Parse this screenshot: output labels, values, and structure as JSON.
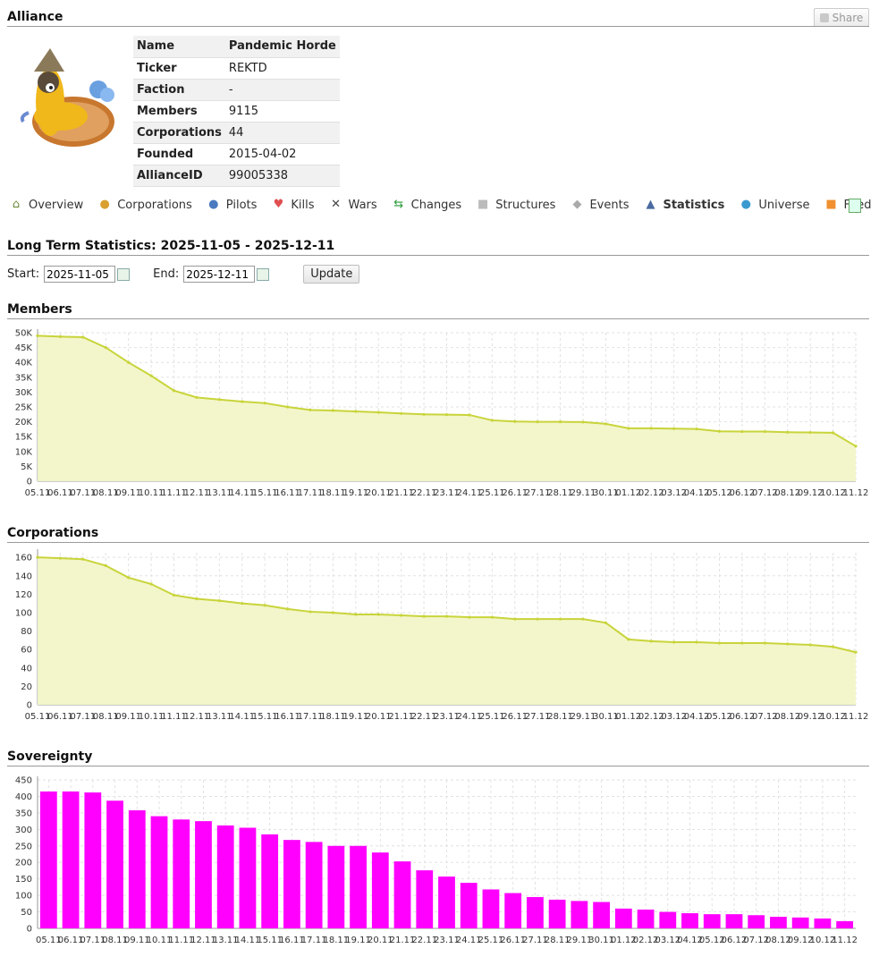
{
  "header": {
    "title": "Alliance",
    "share_label": "Share"
  },
  "info": {
    "rows": [
      {
        "key": "Name",
        "value": "Pandemic Horde"
      },
      {
        "key": "Ticker",
        "value": "REKTD"
      },
      {
        "key": "Faction",
        "value": "-"
      },
      {
        "key": "Members",
        "value": "9115"
      },
      {
        "key": "Corporations",
        "value": "44"
      },
      {
        "key": "Founded",
        "value": "2015-04-02"
      },
      {
        "key": "AllianceID",
        "value": "99005338"
      }
    ]
  },
  "nav": {
    "items": [
      {
        "label": "Overview",
        "icon": "home-icon"
      },
      {
        "label": "Corporations",
        "icon": "corporations-icon"
      },
      {
        "label": "Pilots",
        "icon": "pilot-icon"
      },
      {
        "label": "Kills",
        "icon": "heart-icon"
      },
      {
        "label": "Wars",
        "icon": "crossed-swords-icon"
      },
      {
        "label": "Changes",
        "icon": "shuffle-icon"
      },
      {
        "label": "Structures",
        "icon": "cube-icon"
      },
      {
        "label": "Events",
        "icon": "tag-icon"
      },
      {
        "label": "Statistics",
        "icon": "chart-icon"
      },
      {
        "label": "Universe",
        "icon": "globe-icon"
      },
      {
        "label": "Feed",
        "icon": "rss-icon"
      }
    ],
    "active": "Statistics",
    "end_icon": "bookmark-icon"
  },
  "stats": {
    "title": "Long Term Statistics: 2025-11-05 - 2025-12-11",
    "start_label": "Start:",
    "start_value": "2025-11-05",
    "end_label": "End:",
    "end_value": "2025-12-11",
    "update_label": "Update"
  },
  "colors": {
    "line": "#c8d43a",
    "area": "#f2f5c8",
    "bar": "#ff00ff",
    "grid": "#e2e2e2"
  },
  "chart_data": [
    {
      "title": "Members",
      "type": "area",
      "x": [
        "05.11",
        "06.11",
        "07.11",
        "08.11",
        "09.11",
        "10.11",
        "11.11",
        "12.11",
        "13.11",
        "14.11",
        "15.11",
        "16.11",
        "17.11",
        "18.11",
        "19.11",
        "20.11",
        "21.11",
        "22.11",
        "23.11",
        "24.11",
        "25.11",
        "26.11",
        "27.11",
        "28.11",
        "29.11",
        "30.11",
        "01.12",
        "02.12",
        "03.12",
        "04.12",
        "05.12",
        "06.12",
        "07.12",
        "08.12",
        "09.12",
        "10.12",
        "11.12"
      ],
      "y": [
        49000,
        48700,
        48500,
        45000,
        40000,
        35500,
        30500,
        28200,
        27500,
        26800,
        26300,
        25000,
        24000,
        23800,
        23500,
        23200,
        22800,
        22500,
        22400,
        22300,
        20500,
        20100,
        20000,
        20000,
        19900,
        19300,
        17800,
        17800,
        17700,
        17600,
        16800,
        16700,
        16700,
        16500,
        16400,
        16300,
        11800
      ],
      "yticks": [
        "0",
        "5K",
        "10K",
        "15K",
        "20K",
        "25K",
        "30K",
        "35K",
        "40K",
        "45K",
        "50K"
      ],
      "ylim": [
        0,
        50000
      ],
      "grid": true
    },
    {
      "title": "Corporations",
      "type": "area",
      "x": [
        "05.11",
        "06.11",
        "07.11",
        "08.11",
        "09.11",
        "10.11",
        "11.11",
        "12.11",
        "13.11",
        "14.11",
        "15.11",
        "16.11",
        "17.11",
        "18.11",
        "19.11",
        "20.11",
        "21.11",
        "22.11",
        "23.11",
        "24.11",
        "25.11",
        "26.11",
        "27.11",
        "28.11",
        "29.11",
        "30.11",
        "01.12",
        "02.12",
        "03.12",
        "04.12",
        "05.12",
        "06.12",
        "07.12",
        "08.12",
        "09.12",
        "10.12",
        "11.12"
      ],
      "y": [
        160,
        159,
        158,
        151,
        138,
        131,
        119,
        115,
        113,
        110,
        108,
        104,
        101,
        100,
        98,
        98,
        97,
        96,
        96,
        95,
        95,
        93,
        93,
        93,
        93,
        89,
        71,
        69,
        68,
        68,
        67,
        67,
        67,
        66,
        65,
        63,
        57
      ],
      "yticks": [
        "0",
        "20",
        "40",
        "60",
        "80",
        "100",
        "120",
        "140",
        "160"
      ],
      "ylim": [
        0,
        165
      ],
      "grid": true
    },
    {
      "title": "Sovereignty",
      "type": "bar",
      "x": [
        "05.11",
        "06.11",
        "07.11",
        "08.11",
        "09.11",
        "10.11",
        "11.11",
        "12.11",
        "13.11",
        "14.11",
        "15.11",
        "16.11",
        "17.11",
        "18.11",
        "19.11",
        "20.11",
        "21.11",
        "22.11",
        "23.11",
        "24.11",
        "25.11",
        "26.11",
        "27.11",
        "28.11",
        "29.11",
        "30.11",
        "01.12",
        "02.12",
        "03.12",
        "04.12",
        "05.12",
        "06.12",
        "07.12",
        "08.12",
        "09.12",
        "10.12",
        "11.12"
      ],
      "y": [
        415,
        415,
        412,
        387,
        358,
        340,
        330,
        325,
        312,
        305,
        285,
        268,
        262,
        250,
        250,
        230,
        203,
        176,
        157,
        138,
        118,
        107,
        95,
        87,
        83,
        80,
        60,
        57,
        50,
        46,
        43,
        43,
        40,
        35,
        33,
        30,
        22
      ],
      "yticks": [
        "0",
        "50",
        "100",
        "150",
        "200",
        "250",
        "300",
        "350",
        "400",
        "450"
      ],
      "ylim": [
        0,
        450
      ],
      "grid": true
    }
  ]
}
